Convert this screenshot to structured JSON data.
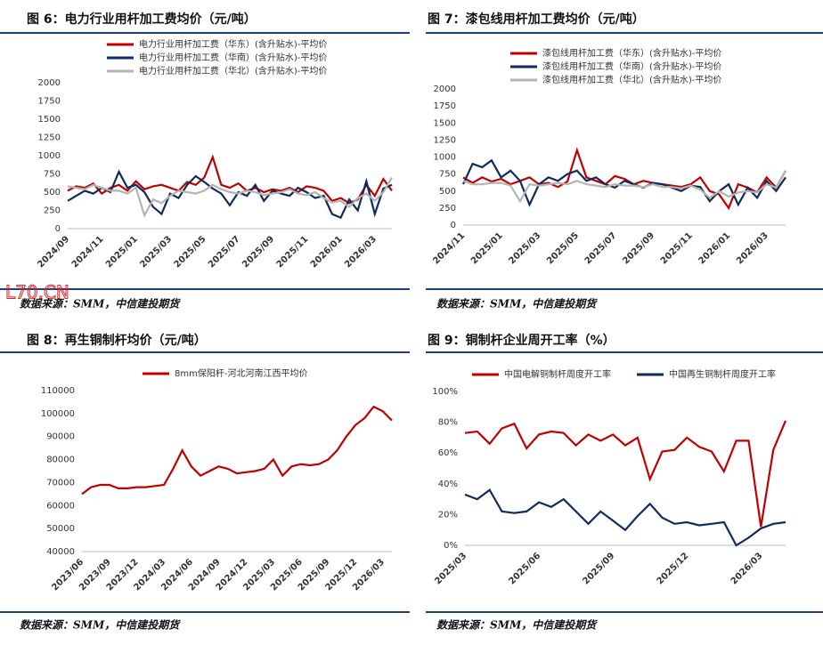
{
  "watermark": "L70.CN",
  "chart_data": [
    {
      "type": "line",
      "title": "图 6：电力行业用杆加工费均价（元/吨）",
      "source": "数据来源：SMM，中信建投期货",
      "legend": "top",
      "grid": false,
      "categories": [
        "2024/09",
        null,
        null,
        null,
        "2024/11",
        null,
        null,
        null,
        "2025/01",
        null,
        null,
        null,
        "2025/03",
        null,
        null,
        null,
        "2025/05",
        null,
        null,
        null,
        "2025/07",
        null,
        null,
        null,
        "2025/09",
        null,
        null,
        null,
        "2025/11",
        null,
        null,
        null,
        "2026/01",
        null,
        null,
        null,
        "2026/03",
        null,
        null
      ],
      "series": [
        {
          "name": "电力行业用杆加工费（华东）(含升贴水)-平均价",
          "color": "#c00000",
          "values": [
            520,
            580,
            560,
            620,
            480,
            560,
            600,
            520,
            650,
            540,
            580,
            600,
            560,
            520,
            640,
            600,
            700,
            980,
            600,
            560,
            620,
            520,
            560,
            500,
            540,
            520,
            560,
            500,
            580,
            560,
            520,
            380,
            420,
            350,
            400,
            600,
            450,
            680,
            520
          ]
        },
        {
          "name": "电力行业用杆加工费（华南）(含升贴水)-平均价",
          "color": "#0f2a5e",
          "values": [
            380,
            450,
            520,
            480,
            560,
            500,
            780,
            560,
            600,
            500,
            300,
            200,
            480,
            420,
            600,
            720,
            640,
            550,
            480,
            320,
            500,
            450,
            600,
            380,
            520,
            480,
            450,
            560,
            500,
            420,
            450,
            200,
            150,
            400,
            250,
            650,
            200,
            550,
            600
          ]
        },
        {
          "name": "电力行业用杆加工费（华北）(含升贴水)-平均价",
          "color": "#b4b4b4",
          "values": [
            580,
            560,
            540,
            600,
            560,
            520,
            520,
            480,
            560,
            180,
            400,
            350,
            450,
            520,
            500,
            480,
            520,
            600,
            540,
            500,
            480,
            520,
            500,
            460,
            480,
            500,
            540,
            480,
            460,
            500,
            420,
            360,
            380,
            300,
            420,
            480,
            380,
            500,
            700
          ]
        }
      ],
      "ylim": [
        0,
        2000
      ],
      "yticks": [
        0,
        250,
        500,
        750,
        1000,
        1250,
        1500,
        1750,
        2000
      ]
    },
    {
      "type": "line",
      "title": "图 7：漆包线用杆加工费均价（元/吨）",
      "source": "数据来源：SMM，中信建投期货",
      "legend": "top",
      "grid": false,
      "categories": [
        "2024/11",
        null,
        null,
        null,
        "2025/01",
        null,
        null,
        null,
        "2025/03",
        null,
        null,
        null,
        "2025/05",
        null,
        null,
        null,
        "2025/07",
        null,
        null,
        null,
        "2025/09",
        null,
        null,
        null,
        "2025/11",
        null,
        null,
        null,
        "2026/01",
        null,
        null,
        null,
        "2026/03",
        null,
        null
      ],
      "series": [
        {
          "name": "漆包线用杆加工费（华东）(含升贴水)-平均价",
          "color": "#c00000",
          "values": [
            700,
            620,
            700,
            640,
            680,
            600,
            650,
            700,
            600,
            620,
            560,
            640,
            1100,
            700,
            650,
            600,
            720,
            680,
            600,
            650,
            620,
            600,
            580,
            560,
            600,
            700,
            500,
            450,
            250,
            600,
            550,
            480,
            700,
            550,
            800
          ]
        },
        {
          "name": "漆包线用杆加工费（华南）(含升贴水)-平均价",
          "color": "#0f2a5e",
          "values": [
            600,
            900,
            850,
            950,
            700,
            800,
            650,
            300,
            600,
            700,
            650,
            750,
            800,
            650,
            700,
            600,
            550,
            650,
            600,
            550,
            620,
            600,
            550,
            500,
            580,
            560,
            350,
            500,
            600,
            300,
            550,
            400,
            650,
            500,
            700
          ]
        },
        {
          "name": "漆包线用杆加工费（华北）(含升贴水)-平均价",
          "color": "#b4b4b4",
          "values": [
            650,
            600,
            600,
            620,
            620,
            580,
            350,
            600,
            580,
            600,
            620,
            600,
            650,
            600,
            580,
            560,
            600,
            580,
            580,
            560,
            600,
            560,
            560,
            540,
            580,
            520,
            400,
            500,
            420,
            480,
            500,
            480,
            600,
            550,
            800
          ]
        }
      ],
      "ylim": [
        0,
        2000
      ],
      "yticks": [
        0,
        250,
        500,
        750,
        1000,
        1250,
        1500,
        1750,
        2000
      ]
    },
    {
      "type": "line",
      "title": "图 8：再生铜制杆均价（元/吨）",
      "source": "数据来源：SMM，中信建投期货",
      "legend": "top",
      "grid": false,
      "categories": [
        "2023/06",
        null,
        null,
        "2023/09",
        null,
        null,
        "2023/12",
        null,
        null,
        "2024/03",
        null,
        null,
        "2024/06",
        null,
        null,
        "2024/09",
        null,
        null,
        "2024/12",
        null,
        null,
        "2025/03",
        null,
        null,
        "2025/06",
        null,
        null,
        "2025/09",
        null,
        null,
        "2025/12",
        null,
        null,
        "2026/03",
        null
      ],
      "series": [
        {
          "name": "8mm保阳杆-河北河南江西平均价",
          "color": "#c00000",
          "values": [
            65000,
            68000,
            69000,
            69000,
            67500,
            67500,
            68000,
            68000,
            68500,
            69000,
            76000,
            84000,
            77000,
            73000,
            75000,
            77000,
            76000,
            74000,
            74500,
            75000,
            76000,
            80000,
            73000,
            77000,
            78000,
            77500,
            78000,
            80000,
            84000,
            90000,
            95000,
            98000,
            103000,
            101000,
            97000
          ]
        }
      ],
      "ylim": [
        40000,
        110000
      ],
      "yticks": [
        40000,
        50000,
        60000,
        70000,
        80000,
        90000,
        100000,
        110000
      ]
    },
    {
      "type": "line",
      "title": "图 9：铜制杆企业周开工率（%）",
      "source": "数据来源：SMM，中信建投期货",
      "legend": "top-row",
      "grid": false,
      "categories": [
        "2025/03",
        null,
        null,
        null,
        null,
        null,
        "2025/06",
        null,
        null,
        null,
        null,
        null,
        "2025/09",
        null,
        null,
        null,
        null,
        null,
        "2025/12",
        null,
        null,
        null,
        null,
        null,
        "2026/03",
        null,
        null
      ],
      "series": [
        {
          "name": "中国电解铜制杆周度开工率",
          "color": "#c00000",
          "values": [
            73,
            74,
            66,
            76,
            79,
            63,
            72,
            74,
            73,
            65,
            72,
            68,
            72,
            65,
            70,
            43,
            61,
            62,
            70,
            64,
            61,
            48,
            68,
            68,
            12,
            62,
            81
          ]
        },
        {
          "name": "中国再生铜制杆周度开工率",
          "color": "#0f2a5e",
          "values": [
            33,
            30,
            36,
            22,
            21,
            22,
            28,
            25,
            30,
            22,
            14,
            22,
            16,
            10,
            19,
            27,
            18,
            14,
            15,
            13,
            14,
            15,
            0,
            5,
            11,
            14,
            15
          ]
        }
      ],
      "ylim": [
        0,
        100
      ],
      "yticks": [
        {
          "value": 0,
          "label": "0%"
        },
        {
          "value": 20,
          "label": "20%"
        },
        {
          "value": 40,
          "label": "40%"
        },
        {
          "value": 60,
          "label": "60%"
        },
        {
          "value": 80,
          "label": "80%"
        },
        {
          "value": 100,
          "label": "100%"
        }
      ]
    }
  ]
}
